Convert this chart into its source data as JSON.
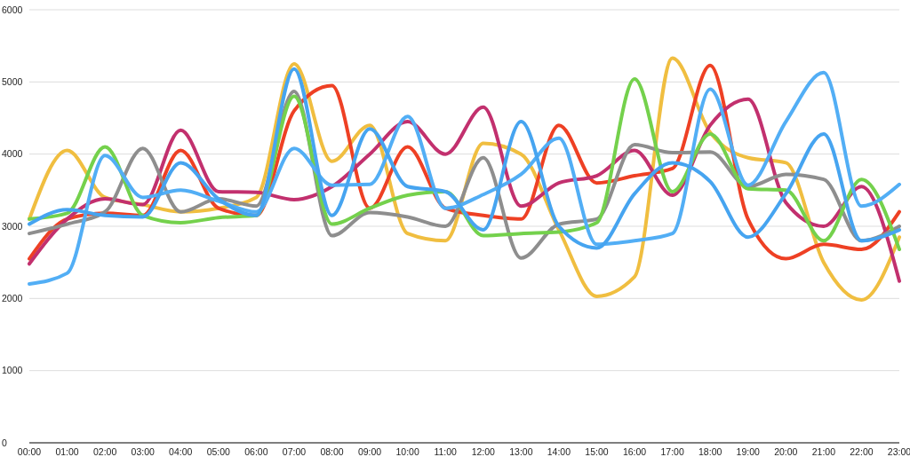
{
  "chart_data": {
    "type": "line",
    "categories": [
      "00:00",
      "01:00",
      "02:00",
      "03:00",
      "04:00",
      "05:00",
      "06:00",
      "07:00",
      "08:00",
      "09:00",
      "10:00",
      "11:00",
      "12:00",
      "13:00",
      "14:00",
      "15:00",
      "16:00",
      "17:00",
      "18:00",
      "19:00",
      "20:00",
      "21:00",
      "22:00",
      "23:00"
    ],
    "ylim": [
      0,
      6000
    ],
    "yticks": [
      0,
      1000,
      2000,
      3000,
      4000,
      5000,
      6000
    ],
    "grid": "y",
    "marker": "none",
    "line_style": "solid",
    "series": [
      {
        "color": "#f0be40",
        "values": [
          3100,
          4050,
          3400,
          3300,
          3200,
          3250,
          3400,
          5250,
          3900,
          4400,
          2900,
          2800,
          4150,
          4000,
          2950,
          2030,
          2300,
          5330,
          4300,
          3950,
          3880,
          2500,
          1980,
          2850
        ]
      },
      {
        "color": "#ee4024",
        "values": [
          2550,
          3100,
          3180,
          3150,
          4050,
          3250,
          3150,
          4600,
          4950,
          3250,
          4100,
          3250,
          3150,
          3100,
          4400,
          3600,
          3700,
          3800,
          5230,
          3100,
          2550,
          2750,
          2680,
          3200
        ]
      },
      {
        "color": "#c2306e",
        "values": [
          2480,
          3100,
          3380,
          3300,
          4330,
          3480,
          3470,
          3370,
          3550,
          4000,
          4450,
          4000,
          4650,
          3280,
          3600,
          3700,
          4050,
          3430,
          4400,
          4760,
          3330,
          3000,
          3550,
          2240
        ]
      },
      {
        "color": "#8e8e8e",
        "values": [
          2900,
          3030,
          3200,
          4080,
          3200,
          3380,
          3280,
          4870,
          2870,
          3190,
          3130,
          3000,
          3950,
          2560,
          3030,
          3100,
          4130,
          4020,
          4030,
          3550,
          3720,
          3650,
          2800,
          3000
        ]
      },
      {
        "color": "#74d14c",
        "values": [
          3100,
          3180,
          4100,
          3150,
          3050,
          3120,
          3150,
          4800,
          3030,
          3250,
          3430,
          3480,
          2870,
          2900,
          2920,
          3050,
          5040,
          3480,
          4280,
          3520,
          3500,
          2800,
          3650,
          2680
        ]
      },
      {
        "color": "#52aef5",
        "values": [
          2200,
          2350,
          3980,
          3400,
          3500,
          3350,
          3200,
          4080,
          3570,
          3580,
          4520,
          3250,
          3440,
          3720,
          4220,
          2750,
          2800,
          2900,
          4900,
          3570,
          4450,
          5130,
          3280,
          3580
        ]
      },
      {
        "color": "#46a4f0",
        "values": [
          3030,
          3230,
          3150,
          3130,
          3880,
          3380,
          3150,
          5180,
          3150,
          4350,
          3550,
          3480,
          2950,
          4450,
          3000,
          2700,
          3450,
          3880,
          3620,
          2850,
          3450,
          4280,
          2800,
          2950
        ]
      }
    ]
  }
}
